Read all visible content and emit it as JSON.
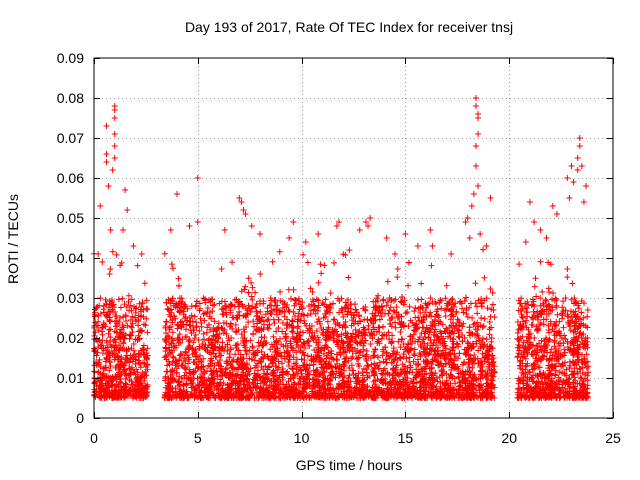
{
  "chart_data": {
    "type": "scatter",
    "title": "Day 193 of 2017, Rate Of TEC Index for receiver tnsj",
    "xlabel": "GPS time / hours",
    "ylabel": "ROTI / TECUs",
    "xlim": [
      0,
      25
    ],
    "ylim": [
      0,
      0.09
    ],
    "xticks": [
      0,
      5,
      10,
      15,
      20,
      25
    ],
    "xtick_labels": [
      "0",
      "5",
      "10",
      "15",
      "20",
      "25"
    ],
    "yticks": [
      0,
      0.01,
      0.02,
      0.03,
      0.04,
      0.05,
      0.06,
      0.07,
      0.08,
      0.09
    ],
    "ytick_labels": [
      "0",
      "0.01",
      "0.02",
      "0.03",
      "0.04",
      "0.05",
      "0.06",
      "0.07",
      "0.08",
      "0.09"
    ],
    "grid": true,
    "marker": "+",
    "series": [
      {
        "name": "ROTI",
        "color": "#ff0000",
        "coverage_hours": [
          [
            0,
            2.6
          ],
          [
            3.4,
            19.3
          ],
          [
            20.4,
            23.8
          ]
        ],
        "typical_range": [
          0.005,
          0.03
        ],
        "points": [
          [
            0.3,
            0.053
          ],
          [
            0.6,
            0.073
          ],
          [
            0.6,
            0.066
          ],
          [
            0.6,
            0.064
          ],
          [
            0.7,
            0.058
          ],
          [
            0.8,
            0.047
          ],
          [
            1.0,
            0.078
          ],
          [
            1.0,
            0.077
          ],
          [
            1.0,
            0.075
          ],
          [
            1.0,
            0.071
          ],
          [
            1.0,
            0.068
          ],
          [
            1.0,
            0.065
          ],
          [
            0.9,
            0.062
          ],
          [
            1.5,
            0.057
          ],
          [
            1.6,
            0.052
          ],
          [
            1.4,
            0.047
          ],
          [
            1.9,
            0.043
          ],
          [
            2.3,
            0.041
          ],
          [
            0.2,
            0.041
          ],
          [
            0.4,
            0.039
          ],
          [
            4.0,
            0.056
          ],
          [
            5.0,
            0.06
          ],
          [
            5.0,
            0.049
          ],
          [
            4.6,
            0.048
          ],
          [
            3.7,
            0.047
          ],
          [
            7.0,
            0.055
          ],
          [
            7.1,
            0.054
          ],
          [
            7.2,
            0.052
          ],
          [
            7.3,
            0.051
          ],
          [
            6.3,
            0.047
          ],
          [
            7.6,
            0.048
          ],
          [
            8.0,
            0.046
          ],
          [
            9.4,
            0.045
          ],
          [
            9.6,
            0.049
          ],
          [
            10.2,
            0.044
          ],
          [
            10.8,
            0.046
          ],
          [
            11.7,
            0.048
          ],
          [
            11.8,
            0.049
          ],
          [
            12.3,
            0.042
          ],
          [
            12.8,
            0.047
          ],
          [
            13.1,
            0.049
          ],
          [
            13.2,
            0.048
          ],
          [
            13.3,
            0.05
          ],
          [
            14.1,
            0.045
          ],
          [
            14.5,
            0.041
          ],
          [
            15.0,
            0.046
          ],
          [
            15.6,
            0.043
          ],
          [
            16.2,
            0.047
          ],
          [
            16.3,
            0.043
          ],
          [
            17.2,
            0.041
          ],
          [
            17.9,
            0.049
          ],
          [
            18.1,
            0.045
          ],
          [
            18.4,
            0.08
          ],
          [
            18.4,
            0.078
          ],
          [
            18.5,
            0.076
          ],
          [
            18.5,
            0.075
          ],
          [
            18.5,
            0.071
          ],
          [
            18.4,
            0.068
          ],
          [
            18.4,
            0.063
          ],
          [
            18.5,
            0.058
          ],
          [
            18.3,
            0.056
          ],
          [
            18.2,
            0.053
          ],
          [
            18.0,
            0.05
          ],
          [
            18.6,
            0.046
          ],
          [
            18.9,
            0.043
          ],
          [
            19.1,
            0.055
          ],
          [
            21.0,
            0.054
          ],
          [
            21.2,
            0.049
          ],
          [
            21.5,
            0.047
          ],
          [
            21.8,
            0.045
          ],
          [
            22.1,
            0.053
          ],
          [
            22.3,
            0.051
          ],
          [
            22.8,
            0.06
          ],
          [
            22.9,
            0.055
          ],
          [
            23.0,
            0.063
          ],
          [
            23.1,
            0.059
          ],
          [
            23.3,
            0.065
          ],
          [
            23.3,
            0.062
          ],
          [
            23.4,
            0.07
          ],
          [
            23.4,
            0.068
          ],
          [
            23.5,
            0.063
          ],
          [
            23.6,
            0.054
          ],
          [
            23.7,
            0.058
          ],
          [
            20.8,
            0.044
          ]
        ]
      }
    ]
  }
}
